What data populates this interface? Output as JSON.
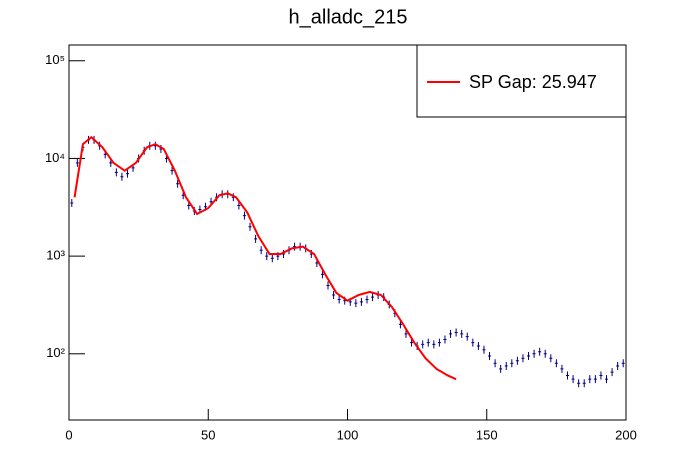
{
  "chart_data": {
    "type": "histogram",
    "title": "h_alladc_215",
    "log_y": true,
    "xlim": [
      0,
      200
    ],
    "ylim": [
      21,
      145000
    ],
    "xticks": [
      0,
      50,
      100,
      150,
      200
    ],
    "yticks": [
      {
        "value": 100,
        "label": "10²"
      },
      {
        "value": 1000,
        "label": "10³"
      },
      {
        "value": 10000,
        "label": "10⁴"
      },
      {
        "value": 100000,
        "label": "10⁵"
      }
    ],
    "legend_position": "upper right",
    "series": [
      {
        "name": "h_alladc_215",
        "color": "#000080",
        "x": [
          1,
          3,
          5,
          7,
          9,
          11,
          13,
          15,
          17,
          19,
          21,
          23,
          25,
          27,
          29,
          31,
          33,
          35,
          37,
          39,
          41,
          43,
          45,
          47,
          49,
          51,
          53,
          55,
          57,
          59,
          61,
          63,
          65,
          67,
          69,
          71,
          73,
          75,
          77,
          79,
          81,
          83,
          85,
          87,
          89,
          91,
          93,
          95,
          97,
          99,
          101,
          103,
          105,
          107,
          109,
          111,
          113,
          115,
          117,
          119,
          121,
          123,
          125,
          127,
          129,
          131,
          133,
          135,
          137,
          139,
          141,
          143,
          145,
          147,
          149,
          151,
          153,
          155,
          157,
          159,
          161,
          163,
          165,
          167,
          169,
          171,
          173,
          175,
          177,
          179,
          181,
          183,
          185,
          187,
          189,
          191,
          193,
          195,
          197,
          199
        ],
        "values": [
          3500,
          9000,
          13000,
          15500,
          15500,
          13500,
          11000,
          9000,
          7200,
          6500,
          7000,
          8000,
          10000,
          12000,
          13500,
          13500,
          12500,
          10000,
          7500,
          5500,
          4200,
          3300,
          2900,
          3000,
          3200,
          3600,
          4000,
          4300,
          4300,
          4000,
          3300,
          2600,
          2000,
          1500,
          1150,
          1000,
          950,
          1000,
          1050,
          1150,
          1250,
          1250,
          1200,
          1050,
          850,
          650,
          500,
          400,
          360,
          350,
          340,
          330,
          340,
          360,
          380,
          400,
          380,
          320,
          260,
          200,
          160,
          130,
          120,
          125,
          130,
          125,
          130,
          140,
          160,
          165,
          160,
          150,
          130,
          120,
          110,
          95,
          80,
          70,
          75,
          80,
          85,
          90,
          95,
          100,
          105,
          100,
          90,
          80,
          70,
          60,
          55,
          50,
          50,
          55,
          55,
          60,
          55,
          65,
          75,
          80
        ]
      },
      {
        "name": "SP Gap: 25.947",
        "color": "#ff0000",
        "style": "line",
        "x": [
          2,
          5,
          8,
          12,
          16,
          20,
          24,
          28,
          31,
          34,
          38,
          42,
          46,
          50,
          54,
          57,
          60,
          64,
          68,
          72,
          76,
          80,
          84,
          88,
          92,
          96,
          100,
          104,
          108,
          112,
          116,
          120,
          124,
          128,
          132,
          136,
          139
        ],
        "values": [
          4000,
          14000,
          16500,
          13000,
          9000,
          7500,
          9000,
          13000,
          14000,
          12500,
          7500,
          4000,
          2700,
          3100,
          4200,
          4400,
          4000,
          2800,
          1600,
          1050,
          1050,
          1200,
          1250,
          1050,
          650,
          420,
          350,
          400,
          430,
          400,
          300,
          200,
          130,
          90,
          70,
          60,
          55
        ]
      }
    ]
  }
}
